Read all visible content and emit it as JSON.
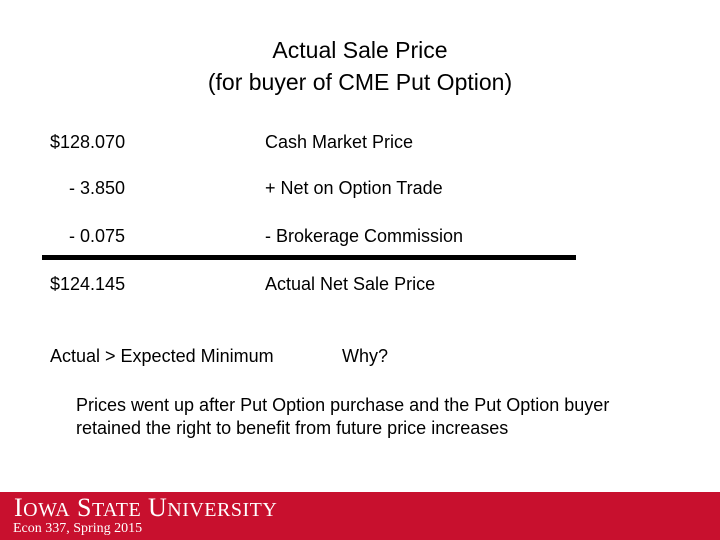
{
  "title": {
    "line1": "Actual Sale Price",
    "line2": "(for buyer of CME Put Option)"
  },
  "rows": [
    {
      "amount": "$128.070",
      "description": "Cash Market Price"
    },
    {
      "amount": "- 3.850",
      "description": "+ Net on Option Trade"
    },
    {
      "amount": "- 0.075",
      "description": "-  Brokerage Commission"
    },
    {
      "amount": "$124.145",
      "description": "Actual Net Sale Price"
    }
  ],
  "comparison": {
    "statement": "Actual > Expected Minimum",
    "question": "Why?"
  },
  "explanation": {
    "line1": "Prices went up after Put Option purchase and the Put Option buyer",
    "line2": "retained the right to benefit from future price increases"
  },
  "footer": {
    "logo_text": "Iowa State University",
    "course": "Econ 337, Spring 2015",
    "background_color": "#c8102e"
  }
}
